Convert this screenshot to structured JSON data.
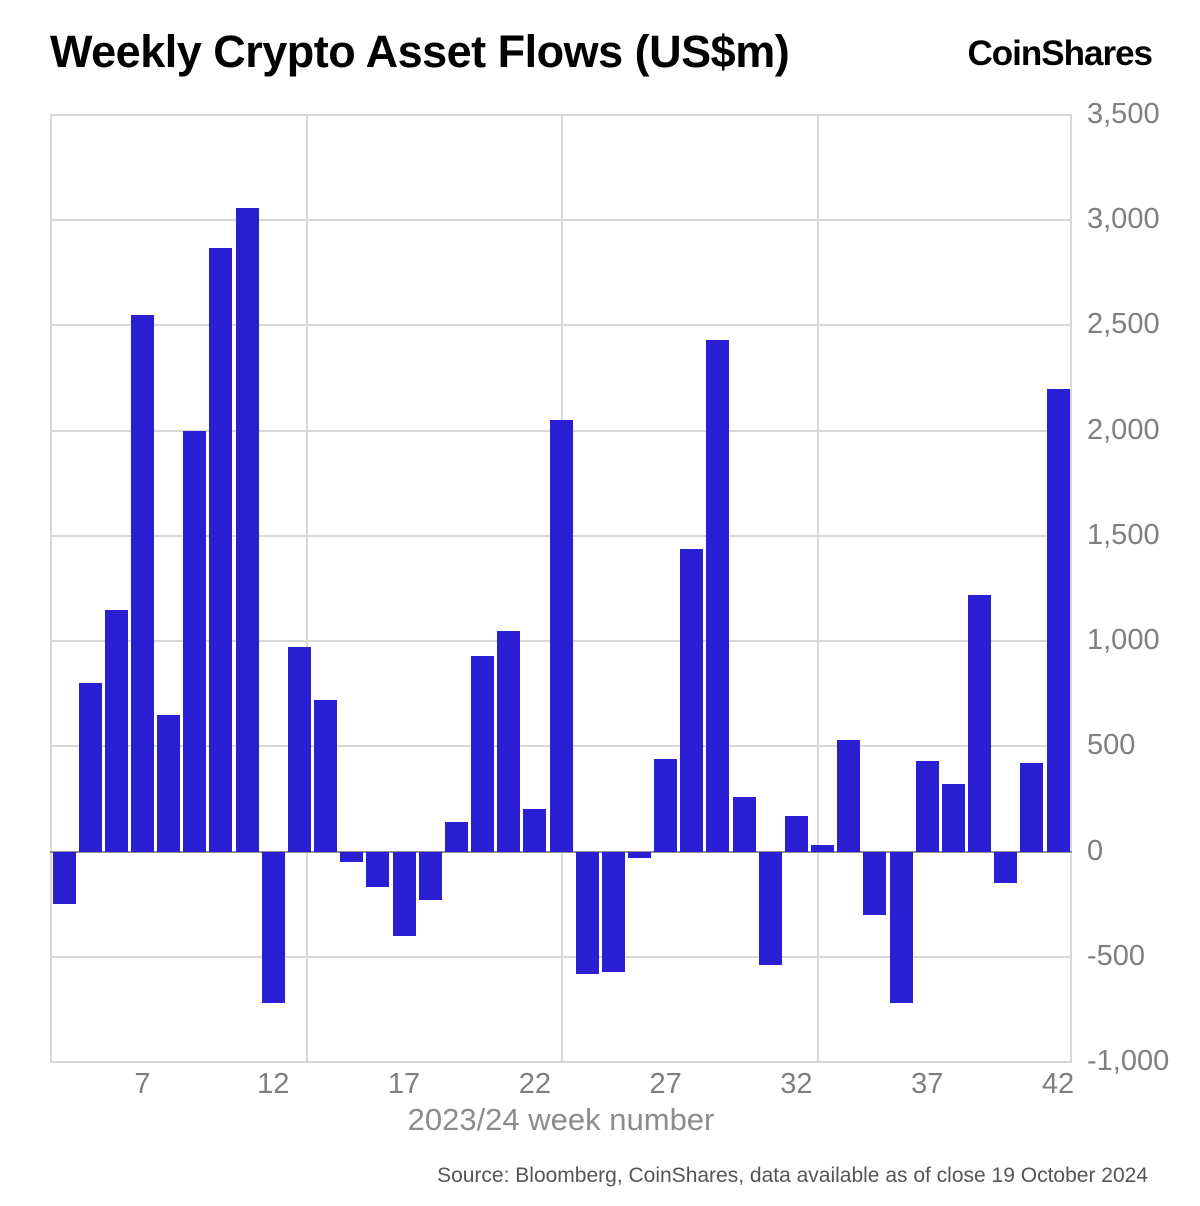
{
  "header": {
    "title": "Weekly Crypto Asset Flows (US$m)",
    "logo": "CoinShares"
  },
  "chart_data": {
    "type": "bar",
    "title": "Weekly Crypto Asset Flows (US$m)",
    "xlabel": "2023/24 week number",
    "ylabel": "",
    "x": [
      4,
      5,
      6,
      7,
      8,
      9,
      10,
      11,
      12,
      13,
      14,
      15,
      16,
      17,
      18,
      19,
      20,
      21,
      22,
      23,
      24,
      25,
      26,
      27,
      28,
      29,
      30,
      31,
      32,
      33,
      34,
      35,
      36,
      37,
      38,
      39,
      40,
      41,
      42
    ],
    "values": [
      -250,
      800,
      1150,
      2550,
      650,
      2000,
      2870,
      3060,
      -720,
      970,
      720,
      -50,
      -170,
      -400,
      -230,
      140,
      930,
      1050,
      200,
      2050,
      -580,
      -570,
      -30,
      440,
      1440,
      2430,
      260,
      -540,
      170,
      30,
      530,
      -300,
      -720,
      430,
      320,
      1220,
      -150,
      420,
      2200
    ],
    "ylim": [
      -1000,
      3500
    ],
    "ytick_step": 500,
    "yticks_labels": [
      "-1,000",
      "-500",
      "0",
      "500",
      "1,000",
      "1,500",
      "2,000",
      "2,500",
      "3,000",
      "3,500"
    ],
    "xticks": [
      7,
      12,
      17,
      22,
      27,
      32,
      37,
      42
    ],
    "bar_color": "#2B1FD3",
    "grid": true,
    "legend": false
  },
  "footer": {
    "source": "Source: Bloomberg, CoinShares, data available as of close 19 October 2024"
  }
}
